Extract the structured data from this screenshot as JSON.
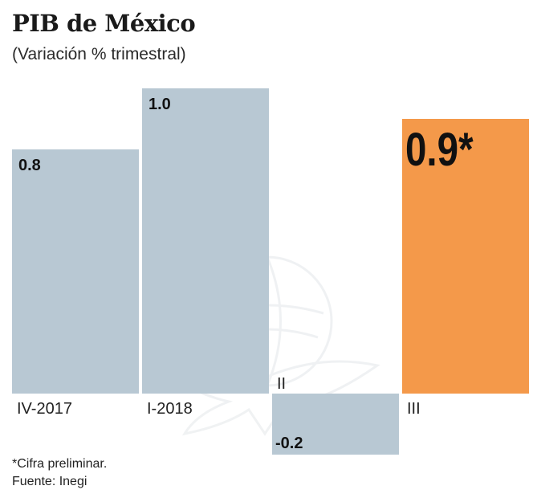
{
  "header": {
    "title": "PIB de México",
    "subtitle": "(Variación % trimestral)"
  },
  "footer": {
    "note": "*Cifra preliminar.",
    "source": "Fuente: Inegi"
  },
  "colors": {
    "bar_default": "#b8c8d3",
    "bar_highlight": "#f4994a",
    "text": "#111111"
  },
  "chart_data": {
    "type": "bar",
    "title": "PIB de México",
    "subtitle": "(Variación % trimestral)",
    "xlabel": "",
    "ylabel": "",
    "ylim": [
      -0.2,
      1.0
    ],
    "grid": false,
    "categories": [
      "IV-2017",
      "I-2018",
      "II",
      "III"
    ],
    "values": [
      0.8,
      1.0,
      -0.2,
      0.9
    ],
    "data_labels": [
      "0.8",
      "1.0",
      "-0.2",
      "0.9*"
    ],
    "highlight_index": 3,
    "annotation": "*Cifra preliminar."
  }
}
